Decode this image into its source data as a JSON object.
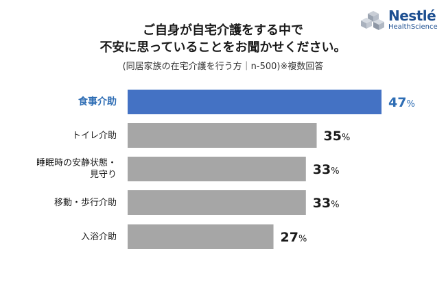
{
  "header": {
    "title_line1": "ご自身が自宅介護をする中で",
    "title_line2": "不安に思っていることをお聞かせください。",
    "subtitle": "(同居家族の在宅介護を行う方｜n-500)※複数回答"
  },
  "logo": {
    "wordmark": "Nestlé",
    "sub": "HealthScience",
    "icon": "cubes-logo-icon"
  },
  "colors": {
    "highlight_bar": "#4472c4",
    "highlight_text": "#2e6db4",
    "bar": "#a6a6a6",
    "text": "#1a1a1a"
  },
  "chart_data": {
    "type": "bar",
    "orientation": "horizontal",
    "categories": [
      "食事介助",
      "トイレ介助",
      "睡眠時の安静状態・見守り",
      "移動・歩行介助",
      "入浴介助"
    ],
    "values": [
      47,
      35,
      33,
      33,
      27
    ],
    "value_suffix": "%",
    "highlight_index": 0,
    "title": "ご自身が自宅介護をする中で不安に思っていることをお聞かせください。",
    "xlabel": "",
    "ylabel": "",
    "xlim": [
      0,
      50
    ],
    "grid": false,
    "legend": "none"
  }
}
